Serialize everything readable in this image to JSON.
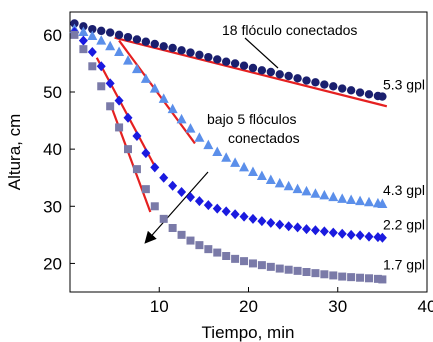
{
  "chart_data": {
    "type": "scatter",
    "title": "",
    "xlabel": "Tiempo, min",
    "ylabel": "Altura, cm",
    "xlim": [
      0,
      40
    ],
    "ylim": [
      15,
      64
    ],
    "xticks": [
      "10",
      "20",
      "30",
      "40"
    ],
    "yticks": [
      "20",
      "30",
      "40",
      "50",
      "60"
    ],
    "grid": false,
    "series": [
      {
        "name": "5.3 gpl",
        "color": "#1a1f6e",
        "marker": "circle",
        "x": [
          0.5,
          1.5,
          2.5,
          3.5,
          4.5,
          5.5,
          6.5,
          7.5,
          8.5,
          9.5,
          10.5,
          11.5,
          12.5,
          13.5,
          14.5,
          15.5,
          16.5,
          17.5,
          18.5,
          19.5,
          20.5,
          21.5,
          22.5,
          23.5,
          24.5,
          25.5,
          26.5,
          27.5,
          28.5,
          29.5,
          30.5,
          31.5,
          32.5,
          33.5,
          34.5,
          35.0
        ],
        "y": [
          62,
          61.5,
          61,
          60.7,
          60.4,
          60,
          59.6,
          59.2,
          58.8,
          58.4,
          58,
          57.7,
          57.3,
          56.9,
          56.5,
          56.1,
          55.7,
          55.3,
          55,
          54.6,
          54.2,
          53.8,
          53.5,
          53.1,
          52.8,
          52.4,
          52,
          51.7,
          51.3,
          51,
          50.6,
          50.3,
          49.9,
          49.6,
          49.3,
          49.2
        ]
      },
      {
        "name": "4.3 gpl",
        "color": "#5b8fea",
        "marker": "triangle",
        "x": [
          0.5,
          1.5,
          2.5,
          3.5,
          4.5,
          5.5,
          6.5,
          7.5,
          8.5,
          9.5,
          10.5,
          11.5,
          12.5,
          13.5,
          14.5,
          15.5,
          16.5,
          17.5,
          18.5,
          19.5,
          20.5,
          21.5,
          22.5,
          23.5,
          24.5,
          25.5,
          26.5,
          27.5,
          28.5,
          29.5,
          30.5,
          31.5,
          32.5,
          33.5,
          34.5,
          35.0
        ],
        "y": [
          61,
          60.5,
          59.8,
          59,
          58,
          57,
          55.5,
          54,
          52.3,
          50.6,
          48.8,
          47,
          45.2,
          43.6,
          42,
          40.7,
          39.5,
          38.5,
          37.6,
          36.8,
          36,
          35.3,
          34.6,
          34,
          33.5,
          33,
          32.6,
          32.2,
          31.9,
          31.6,
          31.3,
          31.1,
          30.9,
          30.7,
          30.5,
          30.4
        ]
      },
      {
        "name": "2.2 gpl",
        "color": "#1a1adf",
        "marker": "diamond",
        "x": [
          0.5,
          1.5,
          2.5,
          3.5,
          4.5,
          5.5,
          6.5,
          7.5,
          8.5,
          9.5,
          10.5,
          11.5,
          12.5,
          13.5,
          14.5,
          15.5,
          16.5,
          17.5,
          18.5,
          19.5,
          20.5,
          21.5,
          22.5,
          23.5,
          24.5,
          25.5,
          26.5,
          27.5,
          28.5,
          29.5,
          30.5,
          31.5,
          32.5,
          33.5,
          34.5,
          35.0
        ],
        "y": [
          60.5,
          59,
          57,
          54.5,
          51.5,
          48.5,
          45.5,
          42.3,
          39.3,
          36.8,
          35,
          33.6,
          32.5,
          31.6,
          30.9,
          30.2,
          29.6,
          29.1,
          28.6,
          28.2,
          27.8,
          27.4,
          27.1,
          26.8,
          26.5,
          26.3,
          26.0,
          25.8,
          25.6,
          25.4,
          25.2,
          25.0,
          24.9,
          24.7,
          24.6,
          24.5
        ]
      },
      {
        "name": "1.7 gpl",
        "color": "#7a7aa8",
        "marker": "square",
        "x": [
          0.5,
          1.5,
          2.5,
          3.5,
          4.5,
          5.5,
          6.5,
          7.5,
          8.5,
          9.5,
          10.5,
          11.5,
          12.5,
          13.5,
          14.5,
          15.5,
          16.5,
          17.5,
          18.5,
          19.5,
          20.5,
          21.5,
          22.5,
          23.5,
          24.5,
          25.5,
          26.5,
          27.5,
          28.5,
          29.5,
          30.5,
          31.5,
          32.5,
          33.5,
          34.5,
          35.0
        ],
        "y": [
          60,
          57.5,
          54.5,
          51,
          47.5,
          43.8,
          40,
          36.5,
          33,
          30,
          27.8,
          26.2,
          25,
          24,
          23.2,
          22.5,
          21.9,
          21.3,
          20.8,
          20.4,
          20,
          19.7,
          19.4,
          19.1,
          18.9,
          18.7,
          18.5,
          18.3,
          18.1,
          17.9,
          17.7,
          17.6,
          17.5,
          17.4,
          17.3,
          17.2
        ]
      }
    ],
    "trend_lines": [
      {
        "color": "#e52020",
        "x": [
          5,
          35.5
        ],
        "y": [
          59.5,
          47.5
        ]
      },
      {
        "color": "#e52020",
        "x": [
          5.5,
          14
        ],
        "y": [
          59,
          41
        ]
      },
      {
        "color": "#e52020",
        "x": [
          3,
          9.5
        ],
        "y": [
          56,
          37
        ]
      },
      {
        "color": "#e52020",
        "x": [
          4.5,
          9
        ],
        "y": [
          48,
          29
        ]
      }
    ],
    "annotations": {
      "top_label": "18 flóculo conectados",
      "mid_label_line1": "bajo 5 flóculos",
      "mid_label_line2": "conectados"
    }
  }
}
